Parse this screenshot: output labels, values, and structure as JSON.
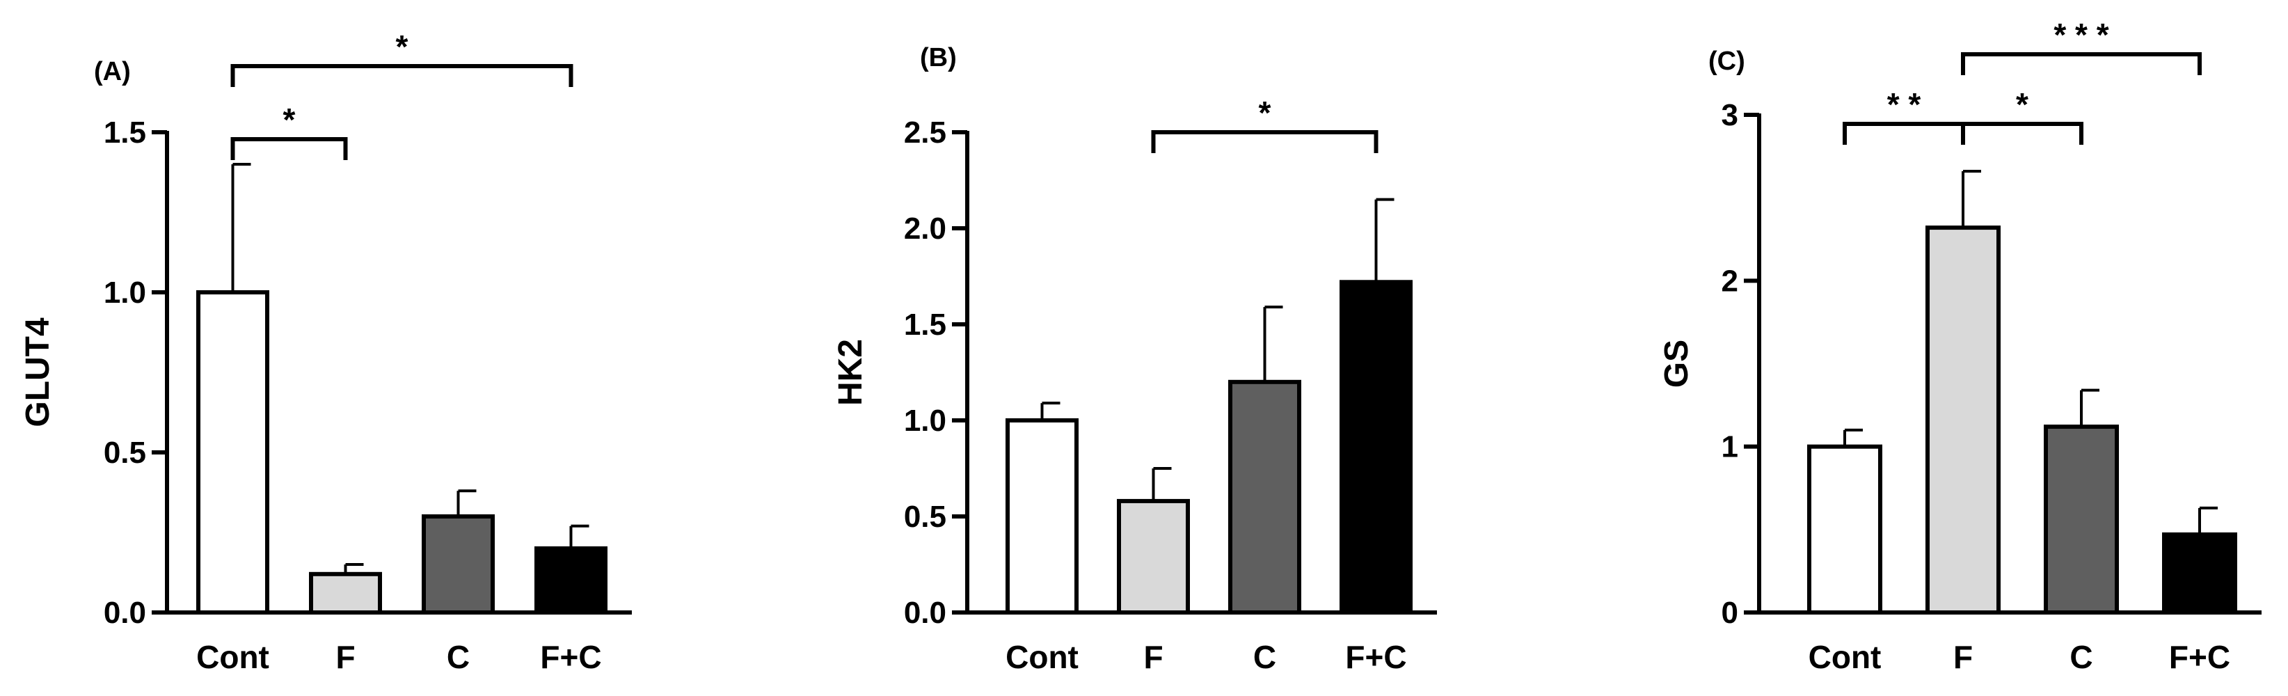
{
  "chart_data": [
    {
      "type": "bar",
      "panel_label": "(A)",
      "categories": [
        "Cont",
        "F",
        "C",
        "F+C"
      ],
      "values": [
        1.0,
        0.12,
        0.3,
        0.2
      ],
      "errors": [
        0.4,
        0.03,
        0.08,
        0.07
      ],
      "bar_colors": [
        "#ffffff",
        "#d9d9d9",
        "#5f5f5f",
        "#000000"
      ],
      "ylabel": "GLUT4",
      "ylim": [
        0,
        1.5
      ],
      "yticks": [
        0.0,
        0.5,
        1.0,
        1.5
      ],
      "ytick_labels": [
        "0.0",
        "0.5",
        "1.0",
        "1.5"
      ],
      "significance": [
        {
          "from": 0,
          "to": 1,
          "level": 0,
          "label": "*"
        },
        {
          "from": 0,
          "to": 3,
          "level": 1,
          "label": "*"
        }
      ]
    },
    {
      "type": "bar",
      "panel_label": "(B)",
      "categories": [
        "Cont",
        "F",
        "C",
        "F+C"
      ],
      "values": [
        1.0,
        0.58,
        1.2,
        1.72
      ],
      "errors": [
        0.09,
        0.17,
        0.39,
        0.43
      ],
      "bar_colors": [
        "#ffffff",
        "#d9d9d9",
        "#5f5f5f",
        "#000000"
      ],
      "ylabel": "HK2",
      "ylim": [
        0,
        2.5
      ],
      "yticks": [
        0.0,
        0.5,
        1.0,
        1.5,
        2.0,
        2.5
      ],
      "ytick_labels": [
        "0.0",
        "0.5",
        "1.0",
        "1.5",
        "2.0",
        "2.5"
      ],
      "significance": [
        {
          "from": 1,
          "to": 3,
          "level": 0,
          "label": "*"
        }
      ]
    },
    {
      "type": "bar",
      "panel_label": "(C)",
      "categories": [
        "Cont",
        "F",
        "C",
        "F+C"
      ],
      "values": [
        1.0,
        2.32,
        1.12,
        0.47
      ],
      "errors": [
        0.1,
        0.34,
        0.22,
        0.16
      ],
      "bar_colors": [
        "#ffffff",
        "#d9d9d9",
        "#5f5f5f",
        "#000000"
      ],
      "ylabel": "GS",
      "ylim": [
        0,
        3
      ],
      "yticks": [
        0,
        1,
        2,
        3
      ],
      "ytick_labels": [
        "0",
        "1",
        "2",
        "3"
      ],
      "significance": [
        {
          "from": 0,
          "to": 1,
          "level": 0,
          "label": "* *"
        },
        {
          "from": 1,
          "to": 2,
          "level": 0,
          "label": "*"
        },
        {
          "from": 1,
          "to": 3,
          "level": 1,
          "label": "* * *"
        }
      ]
    }
  ]
}
